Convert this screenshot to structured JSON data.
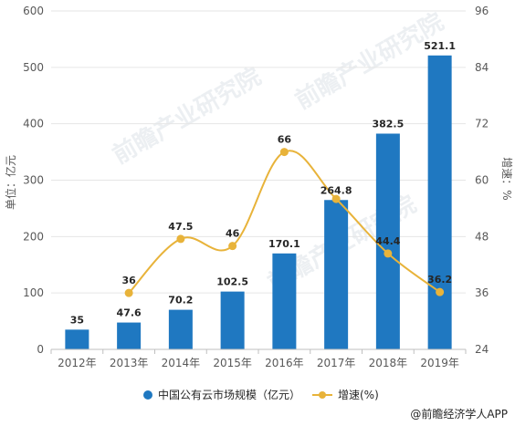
{
  "chart_data": {
    "type": "bar",
    "categories": [
      "2012年",
      "2013年",
      "2014年",
      "2015年",
      "2016年",
      "2017年",
      "2018年",
      "2019年"
    ],
    "series": [
      {
        "name": "中国公有云市场规模（亿元）",
        "type": "bar",
        "axis": "left",
        "color": "#1f78c1",
        "values": [
          35,
          47.6,
          70.2,
          102.5,
          170.1,
          264.8,
          382.5,
          521.1
        ],
        "labels": [
          "35",
          "47.6",
          "70.2",
          "102.5",
          "170.1",
          "264.8",
          "382.5",
          "521.1"
        ]
      },
      {
        "name": "增速(%)",
        "type": "line",
        "axis": "right",
        "color": "#e8b33a",
        "values": [
          null,
          36,
          47.5,
          46,
          66,
          56,
          44.4,
          36.2
        ],
        "labels": [
          "",
          "36",
          "47.5",
          "46",
          "66",
          "",
          "44.4",
          "36.2"
        ]
      }
    ],
    "y_left": {
      "label": "单位：亿元",
      "ylim": [
        0,
        600
      ],
      "ticks": [
        "0",
        "100",
        "200",
        "300",
        "400",
        "500",
        "600"
      ]
    },
    "y_right": {
      "label": "增速：%",
      "ylim": [
        24,
        96
      ],
      "ticks": [
        "24",
        "36",
        "48",
        "60",
        "72",
        "84",
        "96"
      ]
    },
    "grid": true,
    "legend_position": "bottom"
  },
  "watermark": "前瞻产业研究院",
  "source": "@前瞻经济学人APP",
  "colors": {
    "bar": "#1f78c1",
    "line": "#e8b33a",
    "grid": "#e6e6e6",
    "axis": "#bfbfbf"
  }
}
